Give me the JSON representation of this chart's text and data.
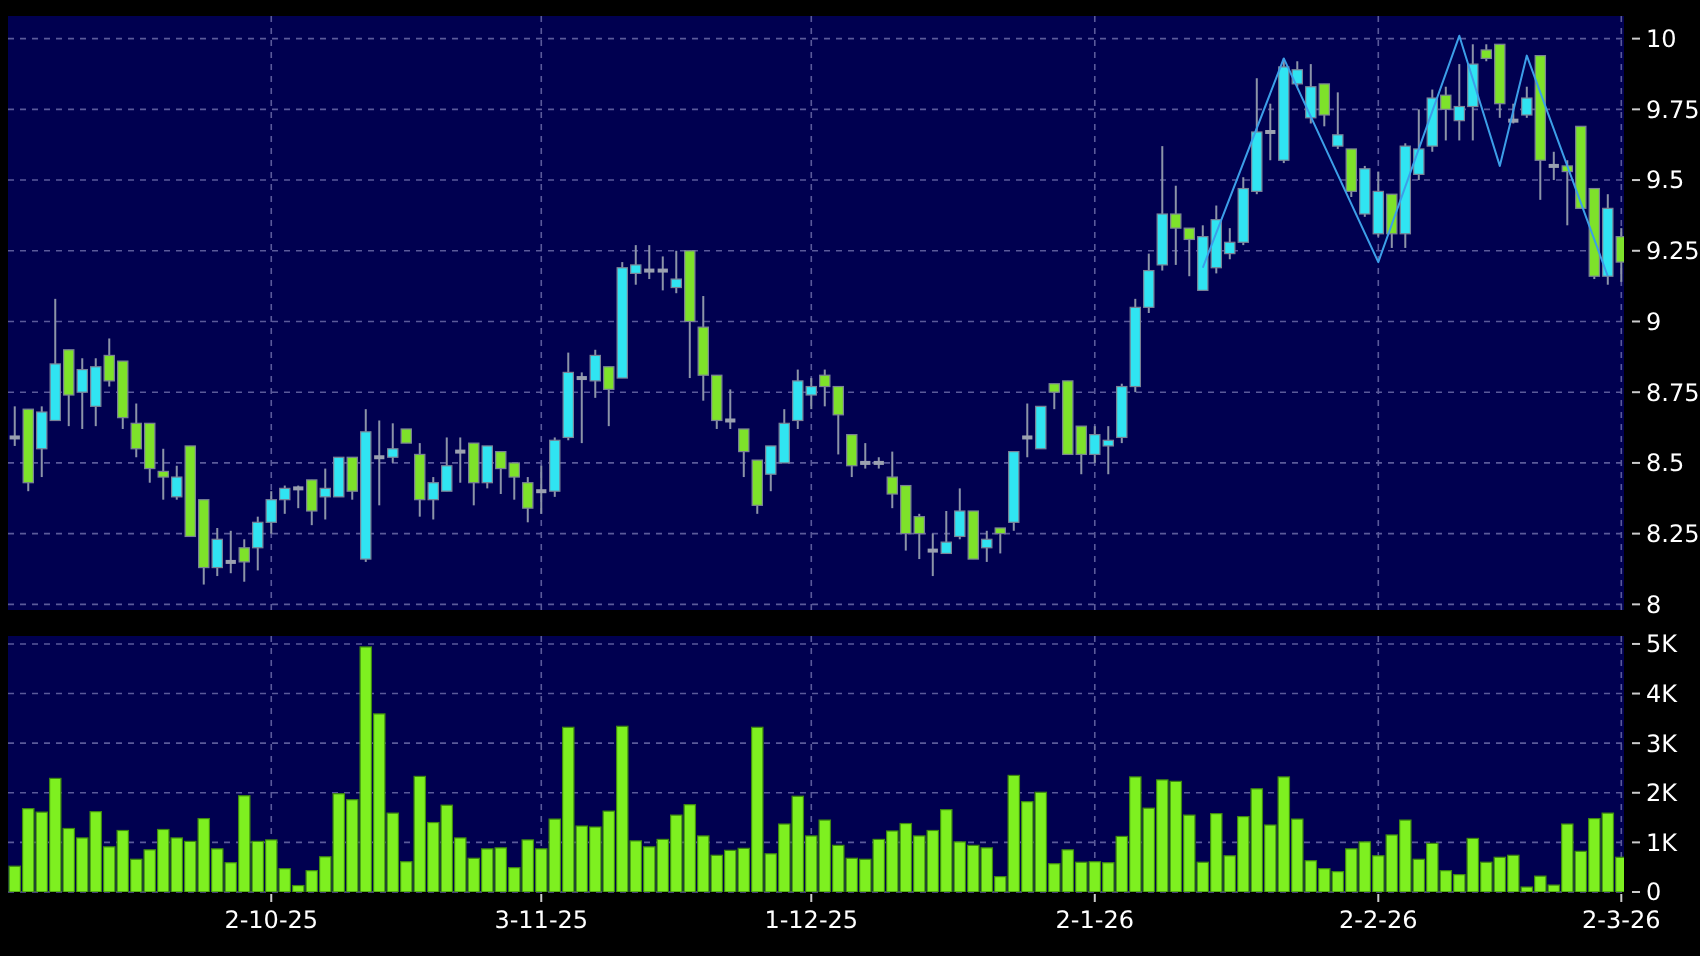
{
  "chart_data": [
    {
      "type": "candlestick",
      "tick_labels": "y",
      "grid": true,
      "categories": [
        null,
        null,
        null,
        null,
        null,
        null,
        null,
        null,
        null,
        null,
        null,
        null,
        null,
        null,
        null,
        null,
        null,
        null,
        null,
        null,
        null,
        null,
        null,
        null,
        null,
        null,
        null,
        null,
        null,
        null,
        null,
        null,
        null,
        null,
        null,
        null,
        null,
        null,
        null,
        null,
        null,
        null,
        null,
        null,
        null,
        null,
        null,
        null,
        null,
        null,
        null,
        null,
        null,
        null,
        null,
        null,
        null,
        null,
        null,
        null,
        null,
        null,
        null,
        null,
        null,
        null,
        null,
        null,
        null,
        null,
        null,
        null,
        null,
        null,
        null,
        null,
        null,
        null,
        null,
        null,
        null,
        null,
        null,
        null,
        null,
        null,
        null,
        null,
        null,
        null,
        null,
        null,
        null,
        null,
        null,
        null,
        null,
        null,
        null,
        null,
        null,
        null,
        null,
        null,
        null,
        null,
        null,
        null,
        null,
        null,
        null,
        null,
        null,
        null,
        null,
        null,
        null,
        null,
        null,
        null
      ],
      "ylim": [
        7.98,
        10.08
      ],
      "yticks": [
        8,
        8.25,
        8.5,
        8.75,
        9,
        9.25,
        9.5,
        9.75,
        10
      ],
      "ohlc": [
        [
          8.59,
          8.7,
          8.56,
          8.59
        ],
        [
          8.69,
          8.69,
          8.4,
          8.43
        ],
        [
          8.55,
          8.7,
          8.45,
          8.68
        ],
        [
          8.65,
          9.08,
          8.65,
          8.85
        ],
        [
          8.9,
          8.9,
          8.63,
          8.74
        ],
        [
          8.75,
          8.87,
          8.62,
          8.83
        ],
        [
          8.7,
          8.87,
          8.63,
          8.84
        ],
        [
          8.88,
          8.94,
          8.77,
          8.79
        ],
        [
          8.86,
          8.86,
          8.62,
          8.66
        ],
        [
          8.64,
          8.71,
          8.52,
          8.55
        ],
        [
          8.64,
          8.64,
          8.43,
          8.48
        ],
        [
          8.47,
          8.55,
          8.37,
          8.45
        ],
        [
          8.38,
          8.49,
          8.37,
          8.45
        ],
        [
          8.56,
          8.56,
          8.24,
          8.24
        ],
        [
          8.37,
          8.37,
          8.07,
          8.13
        ],
        [
          8.13,
          8.27,
          8.1,
          8.23
        ],
        [
          8.15,
          8.26,
          8.11,
          8.15
        ],
        [
          8.2,
          8.23,
          8.08,
          8.15
        ],
        [
          8.2,
          8.31,
          8.12,
          8.29
        ],
        [
          8.29,
          8.4,
          8.25,
          8.37
        ],
        [
          8.37,
          8.42,
          8.32,
          8.41
        ],
        [
          8.41,
          8.42,
          8.34,
          8.41
        ],
        [
          8.44,
          8.44,
          8.28,
          8.33
        ],
        [
          8.38,
          8.48,
          8.3,
          8.41
        ],
        [
          8.38,
          8.52,
          8.38,
          8.52
        ],
        [
          8.52,
          8.52,
          8.37,
          8.4
        ],
        [
          8.16,
          8.69,
          8.15,
          8.61
        ],
        [
          8.52,
          8.65,
          8.35,
          8.52
        ],
        [
          8.52,
          8.64,
          8.5,
          8.55
        ],
        [
          8.62,
          8.62,
          8.57,
          8.57
        ],
        [
          8.53,
          8.57,
          8.31,
          8.37
        ],
        [
          8.37,
          8.45,
          8.3,
          8.43
        ],
        [
          8.4,
          8.59,
          8.4,
          8.49
        ],
        [
          8.54,
          8.59,
          8.43,
          8.54
        ],
        [
          8.57,
          8.57,
          8.35,
          8.43
        ],
        [
          8.43,
          8.56,
          8.41,
          8.56
        ],
        [
          8.54,
          8.54,
          8.39,
          8.48
        ],
        [
          8.5,
          8.5,
          8.37,
          8.45
        ],
        [
          8.43,
          8.45,
          8.29,
          8.34
        ],
        [
          8.4,
          8.49,
          8.32,
          8.4
        ],
        [
          8.4,
          8.59,
          8.38,
          8.58
        ],
        [
          8.59,
          8.89,
          8.58,
          8.82
        ],
        [
          8.8,
          8.82,
          8.57,
          8.8
        ],
        [
          8.79,
          8.9,
          8.73,
          8.88
        ],
        [
          8.84,
          8.84,
          8.63,
          8.76
        ],
        [
          8.8,
          9.21,
          8.8,
          9.19
        ],
        [
          9.17,
          9.27,
          9.13,
          9.2
        ],
        [
          9.18,
          9.27,
          9.15,
          9.18
        ],
        [
          9.18,
          9.23,
          9.11,
          9.18
        ],
        [
          9.12,
          9.25,
          9.1,
          9.15
        ],
        [
          9.25,
          9.25,
          8.8,
          9.0
        ],
        [
          8.98,
          9.09,
          8.72,
          8.81
        ],
        [
          8.81,
          8.81,
          8.62,
          8.65
        ],
        [
          8.65,
          8.76,
          8.62,
          8.65
        ],
        [
          8.62,
          8.62,
          8.45,
          8.54
        ],
        [
          8.51,
          8.51,
          8.32,
          8.35
        ],
        [
          8.46,
          8.56,
          8.4,
          8.56
        ],
        [
          8.5,
          8.69,
          8.5,
          8.64
        ],
        [
          8.65,
          8.83,
          8.62,
          8.79
        ],
        [
          8.74,
          8.8,
          8.69,
          8.77
        ],
        [
          8.81,
          8.83,
          8.7,
          8.77
        ],
        [
          8.77,
          8.77,
          8.53,
          8.67
        ],
        [
          8.6,
          8.6,
          8.45,
          8.49
        ],
        [
          8.5,
          8.57,
          8.48,
          8.5
        ],
        [
          8.5,
          8.52,
          8.48,
          8.5
        ],
        [
          8.45,
          8.54,
          8.34,
          8.39
        ],
        [
          8.42,
          8.42,
          8.19,
          8.25
        ],
        [
          8.31,
          8.32,
          8.16,
          8.25
        ],
        [
          8.19,
          8.25,
          8.1,
          8.19
        ],
        [
          8.18,
          8.33,
          8.18,
          8.22
        ],
        [
          8.24,
          8.41,
          8.23,
          8.33
        ],
        [
          8.33,
          8.33,
          8.16,
          8.16
        ],
        [
          8.2,
          8.26,
          8.15,
          8.23
        ],
        [
          8.27,
          8.27,
          8.18,
          8.25
        ],
        [
          8.29,
          8.54,
          8.26,
          8.54
        ],
        [
          8.59,
          8.71,
          8.52,
          8.59
        ],
        [
          8.55,
          8.7,
          8.55,
          8.7
        ],
        [
          8.78,
          8.78,
          8.69,
          8.75
        ],
        [
          8.79,
          8.79,
          8.53,
          8.53
        ],
        [
          8.63,
          8.63,
          8.46,
          8.53
        ],
        [
          8.53,
          8.63,
          8.5,
          8.6
        ],
        [
          8.56,
          8.63,
          8.46,
          8.58
        ],
        [
          8.59,
          8.78,
          8.57,
          8.77
        ],
        [
          8.77,
          9.08,
          8.75,
          9.05
        ],
        [
          9.05,
          9.24,
          9.03,
          9.18
        ],
        [
          9.2,
          9.62,
          9.18,
          9.38
        ],
        [
          9.38,
          9.48,
          9.2,
          9.33
        ],
        [
          9.33,
          9.33,
          9.16,
          9.29
        ],
        [
          9.11,
          9.34,
          9.11,
          9.3
        ],
        [
          9.19,
          9.41,
          9.17,
          9.36
        ],
        [
          9.24,
          9.33,
          9.22,
          9.28
        ],
        [
          9.28,
          9.51,
          9.27,
          9.47
        ],
        [
          9.46,
          9.86,
          9.45,
          9.67
        ],
        [
          9.67,
          9.77,
          9.57,
          9.67
        ],
        [
          9.57,
          9.93,
          9.56,
          9.9
        ],
        [
          9.84,
          9.92,
          9.83,
          9.89
        ],
        [
          9.72,
          9.91,
          9.7,
          9.83
        ],
        [
          9.84,
          9.84,
          9.69,
          9.73
        ],
        [
          9.62,
          9.81,
          9.61,
          9.66
        ],
        [
          9.61,
          9.61,
          9.44,
          9.46
        ],
        [
          9.38,
          9.55,
          9.37,
          9.54
        ],
        [
          9.31,
          9.53,
          9.3,
          9.46
        ],
        [
          9.45,
          9.45,
          9.26,
          9.31
        ],
        [
          9.31,
          9.63,
          9.26,
          9.62
        ],
        [
          9.52,
          9.75,
          9.5,
          9.61
        ],
        [
          9.62,
          9.82,
          9.6,
          9.79
        ],
        [
          9.8,
          9.83,
          9.64,
          9.75
        ],
        [
          9.71,
          9.91,
          9.64,
          9.76
        ],
        [
          9.76,
          9.98,
          9.64,
          9.91
        ],
        [
          9.96,
          9.98,
          9.92,
          9.93
        ],
        [
          9.98,
          9.98,
          9.72,
          9.77
        ],
        [
          9.71,
          9.77,
          9.7,
          9.71
        ],
        [
          9.73,
          9.83,
          9.72,
          9.79
        ],
        [
          9.94,
          9.94,
          9.43,
          9.57
        ],
        [
          9.55,
          9.6,
          9.5,
          9.55
        ],
        [
          9.55,
          9.57,
          9.34,
          9.53
        ],
        [
          9.69,
          9.69,
          9.4,
          9.4
        ],
        [
          9.47,
          9.47,
          9.15,
          9.16
        ],
        [
          9.16,
          9.45,
          9.13,
          9.4
        ],
        [
          9.3,
          9.33,
          9.14,
          9.21
        ]
      ],
      "colors": [
        "#9aa0b0",
        "#7ee22a",
        "#30e4f2",
        "#30e4f2",
        "#7ee22a",
        "#30e4f2",
        "#30e4f2",
        "#7ee22a",
        "#7ee22a",
        "#7ee22a",
        "#7ee22a",
        "#7ee22a",
        "#30e4f2",
        "#7ee22a",
        "#7ee22a",
        "#30e4f2",
        "#9aa0b0",
        "#7ee22a",
        "#30e4f2",
        "#30e4f2",
        "#30e4f2",
        "#9aa0b0",
        "#7ee22a",
        "#30e4f2",
        "#30e4f2",
        "#7ee22a",
        "#30e4f2",
        "#9aa0b0",
        "#30e4f2",
        "#7ee22a",
        "#7ee22a",
        "#30e4f2",
        "#30e4f2",
        "#9aa0b0",
        "#7ee22a",
        "#30e4f2",
        "#7ee22a",
        "#7ee22a",
        "#7ee22a",
        "#9aa0b0",
        "#30e4f2",
        "#30e4f2",
        "#9aa0b0",
        "#30e4f2",
        "#7ee22a",
        "#30e4f2",
        "#30e4f2",
        "#9aa0b0",
        "#9aa0b0",
        "#30e4f2",
        "#7ee22a",
        "#7ee22a",
        "#7ee22a",
        "#9aa0b0",
        "#7ee22a",
        "#7ee22a",
        "#30e4f2",
        "#30e4f2",
        "#30e4f2",
        "#30e4f2",
        "#7ee22a",
        "#7ee22a",
        "#7ee22a",
        "#9aa0b0",
        "#9aa0b0",
        "#7ee22a",
        "#7ee22a",
        "#7ee22a",
        "#9aa0b0",
        "#30e4f2",
        "#30e4f2",
        "#7ee22a",
        "#30e4f2",
        "#7ee22a",
        "#30e4f2",
        "#9aa0b0",
        "#30e4f2",
        "#7ee22a",
        "#7ee22a",
        "#7ee22a",
        "#30e4f2",
        "#30e4f2",
        "#30e4f2",
        "#30e4f2",
        "#30e4f2",
        "#30e4f2",
        "#7ee22a",
        "#7ee22a",
        "#30e4f2",
        "#30e4f2",
        "#30e4f2",
        "#30e4f2",
        "#30e4f2",
        "#9aa0b0",
        "#30e4f2",
        "#30e4f2",
        "#30e4f2",
        "#7ee22a",
        "#30e4f2",
        "#7ee22a",
        "#30e4f2",
        "#30e4f2",
        "#7ee22a",
        "#30e4f2",
        "#30e4f2",
        "#30e4f2",
        "#7ee22a",
        "#30e4f2",
        "#30e4f2",
        "#7ee22a",
        "#7ee22a",
        "#9aa0b0",
        "#30e4f2",
        "#7ee22a",
        "#9aa0b0",
        "#7ee22a",
        "#7ee22a",
        "#7ee22a",
        "#30e4f2",
        "#7ee22a"
      ],
      "series": [
        {
          "type": "line",
          "color": "#3c9ee8",
          "values": [
            null,
            null,
            null,
            null,
            null,
            null,
            null,
            null,
            null,
            null,
            null,
            null,
            null,
            null,
            null,
            null,
            null,
            null,
            null,
            null,
            null,
            null,
            null,
            null,
            null,
            null,
            null,
            null,
            null,
            null,
            null,
            null,
            null,
            null,
            null,
            null,
            null,
            null,
            null,
            null,
            null,
            null,
            null,
            null,
            null,
            null,
            null,
            null,
            null,
            null,
            null,
            null,
            null,
            null,
            null,
            null,
            null,
            null,
            null,
            null,
            null,
            null,
            null,
            null,
            null,
            null,
            null,
            null,
            null,
            null,
            null,
            null,
            null,
            null,
            null,
            null,
            null,
            null,
            null,
            null,
            null,
            null,
            null,
            null,
            null,
            null,
            null,
            null,
            9.19,
            null,
            null,
            null,
            null,
            null,
            9.93,
            null,
            null,
            null,
            null,
            null,
            null,
            9.21,
            null,
            null,
            null,
            null,
            null,
            10.01,
            null,
            null,
            9.55,
            null,
            9.94,
            null,
            null,
            null,
            null,
            null,
            9.16,
            null
          ]
        }
      ]
    },
    {
      "type": "bar",
      "grid": true,
      "color": "#7ef020",
      "categories": [
        null,
        null,
        null,
        null,
        null,
        null,
        null,
        null,
        null,
        null,
        null,
        null,
        null,
        null,
        null,
        null,
        null,
        null,
        null,
        "2-10-25",
        null,
        null,
        null,
        null,
        null,
        null,
        null,
        null,
        null,
        null,
        null,
        null,
        null,
        null,
        null,
        null,
        null,
        null,
        null,
        "3-11-25",
        null,
        null,
        null,
        null,
        null,
        null,
        null,
        null,
        null,
        null,
        null,
        null,
        null,
        null,
        null,
        null,
        null,
        null,
        null,
        "1-12-25",
        null,
        null,
        null,
        null,
        null,
        null,
        null,
        null,
        null,
        null,
        null,
        null,
        null,
        null,
        null,
        null,
        null,
        null,
        null,
        null,
        "2-1-26",
        null,
        null,
        null,
        null,
        null,
        null,
        null,
        null,
        null,
        null,
        null,
        null,
        null,
        null,
        null,
        null,
        null,
        null,
        null,
        null,
        "2-2-26",
        null,
        null,
        null,
        null,
        null,
        null,
        null,
        null,
        null,
        null,
        null,
        null,
        null,
        null,
        null,
        null,
        null,
        "2-3-26"
      ],
      "ylim": [
        0,
        5160
      ],
      "yticks": [
        0,
        {
          "value": 1000,
          "label": "1K"
        },
        {
          "value": 2000,
          "label": "2K"
        },
        {
          "value": 3000,
          "label": "3K"
        },
        {
          "value": 4000,
          "label": "4K"
        },
        {
          "value": 5000,
          "label": "5K"
        }
      ],
      "values": [
        520,
        1680,
        1610,
        2290,
        1280,
        1090,
        1620,
        910,
        1240,
        660,
        850,
        1260,
        1090,
        1020,
        1480,
        870,
        590,
        1940,
        1020,
        1050,
        470,
        130,
        430,
        710,
        1980,
        1860,
        4940,
        3590,
        1590,
        610,
        2330,
        1400,
        1750,
        1090,
        680,
        870,
        890,
        490,
        1050,
        870,
        1470,
        3320,
        1330,
        1310,
        1630,
        3340,
        1030,
        910,
        1060,
        1550,
        1760,
        1130,
        740,
        840,
        880,
        3320,
        770,
        1370,
        1930,
        1130,
        1450,
        940,
        680,
        660,
        1060,
        1230,
        1380,
        1130,
        1240,
        1660,
        1010,
        940,
        890,
        310,
        2350,
        1820,
        2010,
        570,
        850,
        600,
        610,
        590,
        1120,
        2320,
        1690,
        2260,
        2230,
        1550,
        600,
        1580,
        730,
        1520,
        2080,
        1350,
        2320,
        1470,
        630,
        470,
        410,
        870,
        1010,
        730,
        1150,
        1450,
        660,
        980,
        430,
        350,
        1080,
        600,
        700,
        740,
        100,
        320,
        140,
        1370,
        820,
        1480,
        1590,
        700
      ]
    }
  ]
}
